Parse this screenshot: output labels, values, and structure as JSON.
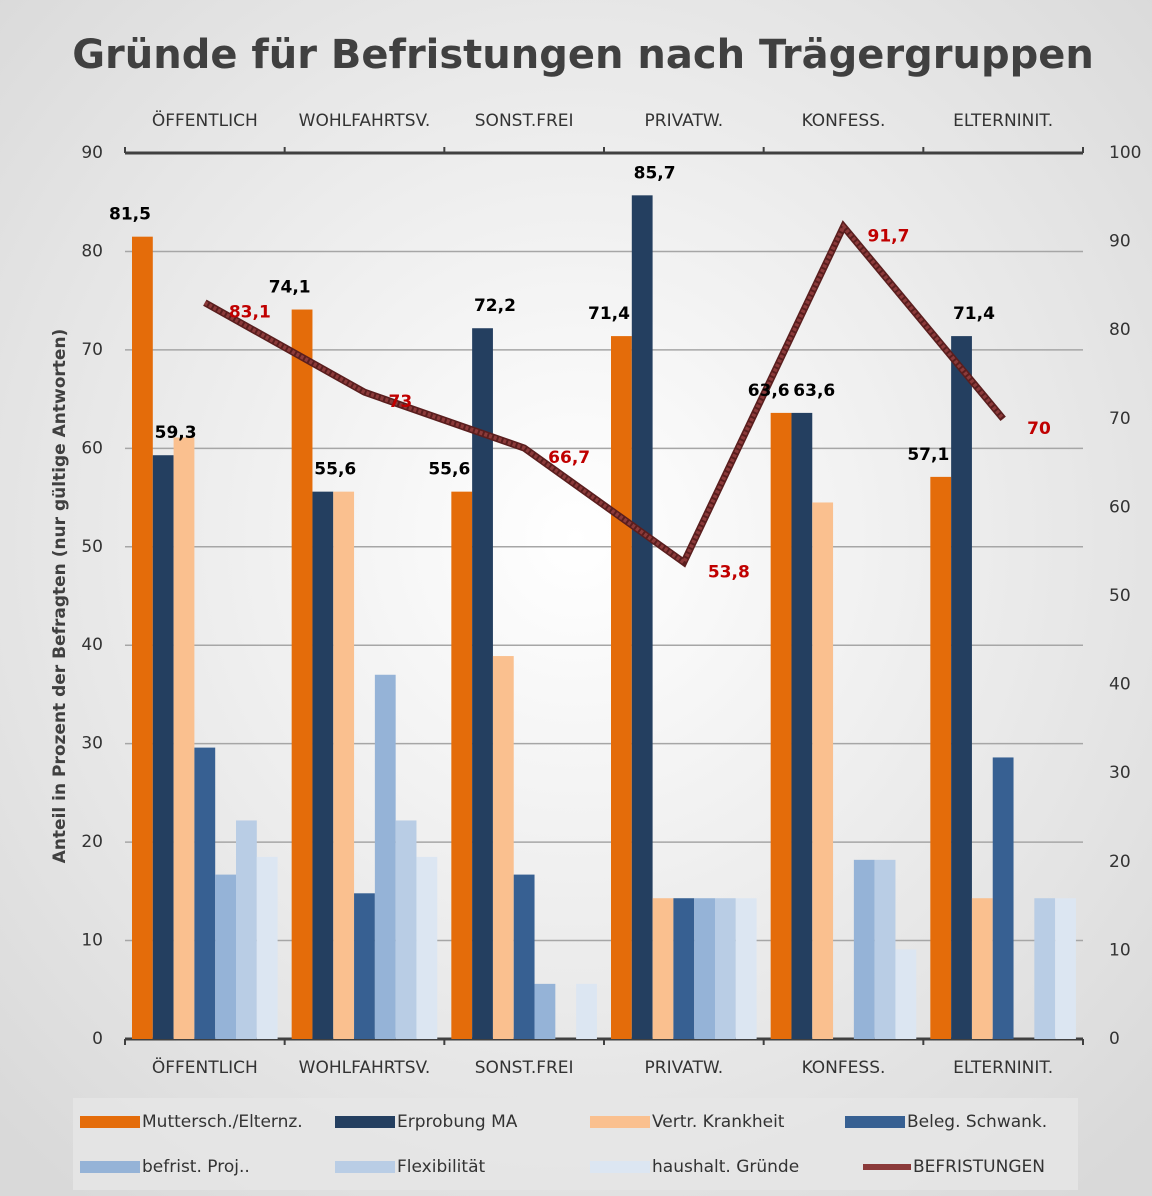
{
  "chart_data": {
    "type": "bar",
    "title": "Gründe für Befristungen nach Trägergruppen",
    "y_label": "Anteil in Prozent der Befragten (nur gültige Antworten)",
    "categories": [
      "ÖFFENTLICH",
      "WOHLFAHRTSV.",
      "SONST.FREI",
      "PRIVATW.",
      "KONFESS.",
      "ELTERNINIT."
    ],
    "ylim": [
      0,
      90
    ],
    "yticks": [
      0,
      10,
      20,
      30,
      40,
      50,
      60,
      70,
      80,
      90
    ],
    "y2lim": [
      0,
      100
    ],
    "y2ticks": [
      0,
      10,
      20,
      30,
      40,
      50,
      60,
      70,
      80,
      90,
      100
    ],
    "grid": true,
    "legend": "bottom",
    "series": [
      {
        "name": "Muttersch./Elternz.",
        "color": "#e46c0a",
        "values": [
          81.5,
          74.1,
          55.6,
          71.4,
          63.6,
          57.1
        ],
        "value_labels": [
          "81,5",
          "74,1",
          "55,6",
          "71,4",
          "63,6",
          "57,1"
        ]
      },
      {
        "name": "Erprobung MA",
        "color": "#243f60",
        "values": [
          59.3,
          55.6,
          72.2,
          85.7,
          63.6,
          71.4
        ],
        "value_labels": [
          "59,3",
          "55,6",
          "72,2",
          "85,7",
          "63,6",
          "71,4"
        ]
      },
      {
        "name": "Vertr. Krankheit",
        "color": "#fac08f",
        "values": [
          61.1,
          55.6,
          38.9,
          14.3,
          54.5,
          14.3
        ]
      },
      {
        "name": "Beleg. Schwank.",
        "color": "#376092",
        "values": [
          29.6,
          14.8,
          16.7,
          14.3,
          0,
          28.6
        ]
      },
      {
        "name": "befrist. Proj..",
        "color": "#95b3d7",
        "values": [
          16.7,
          37.0,
          5.6,
          14.3,
          18.2,
          0
        ]
      },
      {
        "name": "Flexibilität",
        "color": "#b9cde5",
        "values": [
          22.2,
          22.2,
          0,
          14.3,
          18.2,
          14.3
        ]
      },
      {
        "name": "haushalt. Gründe",
        "color": "#dce6f2",
        "values": [
          18.5,
          18.5,
          5.6,
          14.3,
          9.1,
          14.3
        ]
      },
      {
        "name": "BEFRISTUNGEN",
        "type": "line",
        "axis": "y2",
        "color": "#8b3a3a",
        "label_color": "#c00000",
        "values": [
          83.1,
          73,
          66.7,
          53.8,
          91.7,
          70
        ],
        "value_labels": [
          "83,1",
          "73",
          "66,7",
          "53,8",
          "91,7",
          "70"
        ]
      }
    ]
  }
}
